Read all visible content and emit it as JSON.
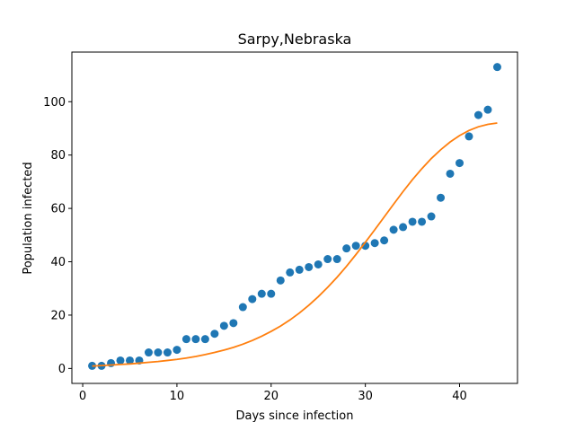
{
  "chart_data": {
    "type": "scatter",
    "title": "Sarpy,Nebraska",
    "xlabel": "Days since infection",
    "ylabel": "Population infected",
    "xlim": [
      -1.15,
      46.15
    ],
    "ylim": [
      -5.6,
      118.6
    ],
    "xticks": [
      0,
      10,
      20,
      30,
      40
    ],
    "yticks": [
      0,
      20,
      40,
      60,
      80,
      100
    ],
    "grid": false,
    "series": [
      {
        "kind": "scatter",
        "color": "#1f77b4",
        "x": [
          1,
          2,
          3,
          4,
          5,
          6,
          7,
          8,
          9,
          10,
          11,
          12,
          13,
          14,
          15,
          16,
          17,
          18,
          19,
          20,
          21,
          22,
          23,
          24,
          25,
          26,
          27,
          28,
          29,
          30,
          31,
          32,
          33,
          34,
          35,
          36,
          37,
          38,
          39,
          40,
          41,
          42,
          43,
          44
        ],
        "y": [
          1,
          1,
          2,
          3,
          3,
          3,
          6,
          6,
          6,
          7,
          11,
          11,
          11,
          13,
          16,
          17,
          23,
          26,
          28,
          28,
          33,
          36,
          37,
          38,
          39,
          41,
          41,
          45,
          46,
          46,
          47,
          48,
          52,
          53,
          55,
          55,
          57,
          64,
          73,
          77,
          87,
          95,
          97,
          113
        ]
      },
      {
        "kind": "line",
        "color": "#ff7f0e",
        "x": [
          1,
          2,
          3,
          4,
          5,
          6,
          7,
          8,
          9,
          10,
          11,
          12,
          13,
          14,
          15,
          16,
          17,
          18,
          19,
          20,
          21,
          22,
          23,
          24,
          25,
          26,
          27,
          28,
          29,
          30,
          31,
          32,
          33,
          34,
          35,
          36,
          37,
          38,
          39,
          40,
          41,
          42,
          43,
          44
        ],
        "y": [
          0.9,
          1.1,
          1.3,
          1.5,
          1.7,
          2.0,
          2.3,
          2.6,
          3.0,
          3.4,
          3.9,
          4.5,
          5.2,
          6.0,
          6.9,
          7.9,
          9.1,
          10.5,
          12.1,
          13.9,
          15.9,
          18.2,
          20.8,
          23.7,
          26.9,
          30.4,
          34.2,
          38.3,
          42.7,
          47.3,
          52.0,
          56.8,
          61.6,
          66.3,
          70.8,
          74.9,
          78.7,
          82.0,
          84.9,
          87.3,
          89.2,
          90.6,
          91.5,
          92.0
        ]
      }
    ]
  }
}
